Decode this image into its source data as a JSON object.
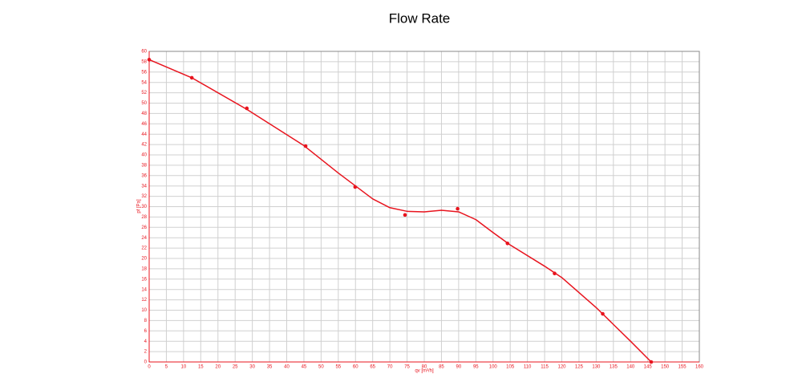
{
  "chart_data": {
    "type": "scatter-line",
    "title": "Flow Rate",
    "x_label": "qv [m³/h]",
    "y_label": "pf [Pa]",
    "xlim": [
      0,
      160
    ],
    "xticks": [
      0,
      5,
      10,
      15,
      20,
      25,
      30,
      35,
      40,
      45,
      50,
      55,
      60,
      65,
      70,
      75,
      80,
      85,
      90,
      95,
      100,
      105,
      110,
      115,
      120,
      125,
      130,
      135,
      140,
      145,
      150,
      155,
      160
    ],
    "ylim": [
      0,
      60
    ],
    "yticks": [
      0,
      2,
      4,
      6,
      8,
      10,
      12,
      14,
      16,
      18,
      20,
      22,
      24,
      26,
      28,
      30,
      32,
      34,
      36,
      38,
      40,
      42,
      44,
      46,
      48,
      50,
      52,
      54,
      56,
      58,
      60
    ],
    "grid": true,
    "series": [
      {
        "kind": "points",
        "color": "#e8141e",
        "x": [
          0,
          12.4,
          28.4,
          45.5,
          59.9,
          74.4,
          89.7,
          104.2,
          117.9,
          131.9,
          146
        ],
        "values": [
          58.4,
          54.9,
          49.0,
          41.7,
          33.8,
          28.4,
          29.6,
          22.9,
          17.1,
          9.3,
          0
        ]
      },
      {
        "kind": "line",
        "color": "#e8141e",
        "x": [
          0,
          12.4,
          28.4,
          45,
          55,
          60,
          65,
          70,
          75,
          80,
          85,
          90,
          95,
          100,
          105,
          115,
          120,
          130,
          140,
          146
        ],
        "values": [
          58.4,
          54.9,
          48.8,
          41.8,
          36.5,
          34,
          31.5,
          29.8,
          29.1,
          29.0,
          29.3,
          29.0,
          27.5,
          25,
          22.6,
          18.5,
          16.3,
          10.5,
          4,
          0
        ]
      }
    ]
  }
}
